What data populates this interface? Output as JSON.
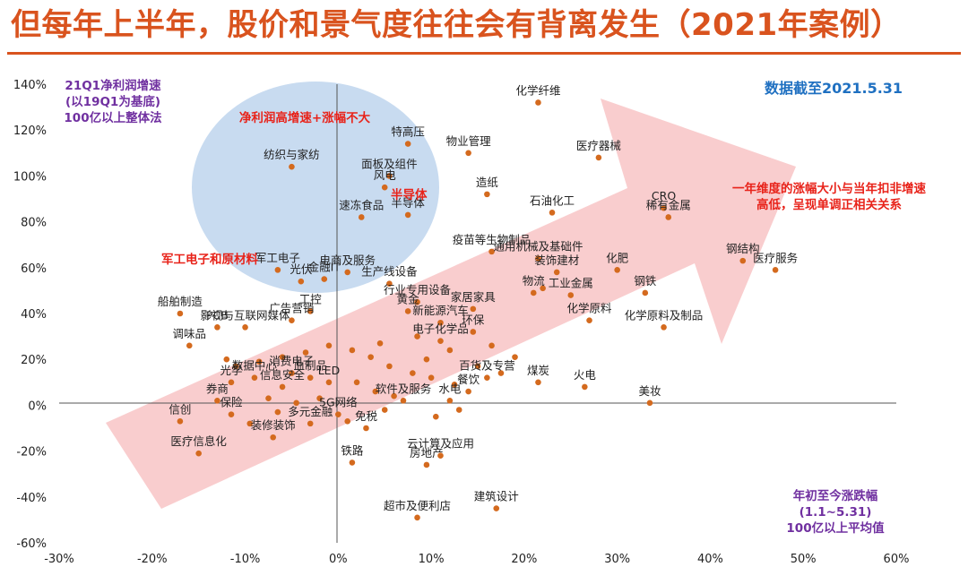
{
  "page_title": "但每年上半年，股价和景气度往往会有背离发生（2021年案例）",
  "colors": {
    "accent": "#d9531e",
    "point": "#d46a1e",
    "red_text": "#e8231a",
    "purple_text": "#7030a0",
    "blue_text": "#1f70c1",
    "ellipse": "#c2d7ee",
    "arrow": "#f8c4c6"
  },
  "chart_data": {
    "type": "scatter",
    "xlim": [
      -30,
      60
    ],
    "ylim": [
      -60,
      140
    ],
    "x_ticks": [
      "-30%",
      "-20%",
      "-10%",
      "0%",
      "10%",
      "20%",
      "30%",
      "40%",
      "50%",
      "60%"
    ],
    "y_ticks": [
      "140%",
      "120%",
      "100%",
      "80%",
      "60%",
      "40%",
      "20%",
      "0%",
      "-20%",
      "-40%",
      "-60%"
    ],
    "y_axis_title": "21Q1净利润增速\n(以19Q1为基底)\n100亿以上整体法",
    "x_axis_title": "年初至今涨跌幅\n(1.1~5.31)\n100亿以上平均值",
    "date_note": "数据截至2021.5.31",
    "annotations": [
      {
        "text": "净利润高增速+涨幅不大",
        "x": -6,
        "y": 123
      },
      {
        "text": "半导体",
        "x": 6,
        "y": 91
      },
      {
        "text": "军工电子和原材料",
        "x": -23,
        "y": 63
      },
      {
        "text": "一年维度的涨幅大小与当年扣非增速\n高低，呈现单调正相关关系",
        "x": 43,
        "y": 93
      }
    ],
    "points": [
      {
        "label": "化学纤维",
        "x": 21.5,
        "y": 132
      },
      {
        "label": "特高压",
        "x": 7.5,
        "y": 114
      },
      {
        "label": "物业管理",
        "x": 14,
        "y": 110
      },
      {
        "label": "医疗器械",
        "x": 28,
        "y": 108
      },
      {
        "label": "纺织与家纺",
        "x": -5,
        "y": 104
      },
      {
        "label": "面板及组件",
        "x": 5.5,
        "y": 100
      },
      {
        "label": "风电",
        "x": 5,
        "y": 95
      },
      {
        "label": "造纸",
        "x": 16,
        "y": 92
      },
      {
        "label": "CRO",
        "x": 35,
        "y": 86
      },
      {
        "label": "稀有金属",
        "x": 35.5,
        "y": 82
      },
      {
        "label": "石油化工",
        "x": 23,
        "y": 84
      },
      {
        "label": "速冻食品",
        "x": 2.5,
        "y": 82
      },
      {
        "label": "疫苗等生物制品",
        "x": 16.5,
        "y": 67
      },
      {
        "label": "钢结构",
        "x": 43.5,
        "y": 63
      },
      {
        "label": "医疗服务",
        "x": 47,
        "y": 59
      },
      {
        "label": "通用机械及基础件",
        "x": 21.5,
        "y": 64
      },
      {
        "label": "装饰建材",
        "x": 23.5,
        "y": 58
      },
      {
        "label": "化肥",
        "x": 30,
        "y": 59
      },
      {
        "label": "金融IT",
        "x": -1.5,
        "y": 55
      },
      {
        "label": "光伏",
        "x": -4,
        "y": 54
      },
      {
        "label": "生产线设备",
        "x": 5.5,
        "y": 53
      },
      {
        "label": "电商及服务",
        "x": 1,
        "y": 58
      },
      {
        "label": "军工电子",
        "x": -6.5,
        "y": 59
      },
      {
        "label": "物流",
        "x": 21,
        "y": 49
      },
      {
        "label": "钢铁",
        "x": 33,
        "y": 49
      },
      {
        "label": "工业金属",
        "x": 25,
        "y": 48
      },
      {
        "label": "家居家具",
        "x": 14.5,
        "y": 42
      },
      {
        "label": "行业专用设备",
        "x": 8.5,
        "y": 45
      },
      {
        "label": "黄金",
        "x": 7.5,
        "y": 41
      },
      {
        "label": "化学原料及制品",
        "x": 35,
        "y": 34
      },
      {
        "label": "化学原料",
        "x": 27,
        "y": 37
      },
      {
        "label": "新能源汽车",
        "x": 11,
        "y": 36
      },
      {
        "label": "环保",
        "x": 14.5,
        "y": 32
      },
      {
        "label": "电子化学品",
        "x": 11,
        "y": 28
      },
      {
        "label": "工控",
        "x": -3,
        "y": 41
      },
      {
        "label": "广告营销",
        "x": -5,
        "y": 37
      },
      {
        "label": "影视与互联网媒体",
        "x": -10,
        "y": 34
      },
      {
        "label": "PCB",
        "x": -13,
        "y": 34
      },
      {
        "label": "船舶制造",
        "x": -17,
        "y": 40
      },
      {
        "label": "调味品",
        "x": -16,
        "y": 26
      },
      {
        "label": "火电",
        "x": 26.5,
        "y": 8
      },
      {
        "label": "美妆",
        "x": 33.5,
        "y": 1
      },
      {
        "label": "煤炭",
        "x": 21.5,
        "y": 10
      },
      {
        "label": "百货及专营",
        "x": 16,
        "y": 12
      },
      {
        "label": "水电",
        "x": 12,
        "y": 2
      },
      {
        "label": "餐饮",
        "x": 14,
        "y": 6
      },
      {
        "label": "信创",
        "x": -17,
        "y": -7
      },
      {
        "label": "医疗信息化",
        "x": -15,
        "y": -21
      },
      {
        "label": "装修装饰",
        "x": -7,
        "y": -14
      },
      {
        "label": "多元金融",
        "x": -3,
        "y": -8
      },
      {
        "label": "5G网络",
        "x": 0,
        "y": -4
      },
      {
        "label": "免税",
        "x": 3,
        "y": -10
      },
      {
        "label": "铁路",
        "x": 1.5,
        "y": -25
      },
      {
        "label": "云计算及应用",
        "x": 11,
        "y": -22
      },
      {
        "label": "房地产",
        "x": 9.5,
        "y": -26
      },
      {
        "label": "建筑设计",
        "x": 17,
        "y": -45
      },
      {
        "label": "超市及便利店",
        "x": 8.5,
        "y": -49
      },
      {
        "label": "券商",
        "x": -13,
        "y": 2
      },
      {
        "label": "保险",
        "x": -11.5,
        "y": -4
      },
      {
        "label": "软件及服务",
        "x": 7,
        "y": 2
      },
      {
        "label": "LED",
        "x": -1,
        "y": 10
      },
      {
        "label": "信息安全",
        "x": -6,
        "y": 8
      },
      {
        "label": "数据中心",
        "x": -9,
        "y": 12
      },
      {
        "label": "光学",
        "x": -11.5,
        "y": 10
      },
      {
        "label": "血制品",
        "x": -3,
        "y": 12
      },
      {
        "label": "消费电子",
        "x": -5,
        "y": 14
      },
      {
        "label": "半导体",
        "x": 7.5,
        "y": 83
      },
      {
        "label": "",
        "x": -11,
        "y": 17
      },
      {
        "label": "",
        "x": -8.5,
        "y": 19
      },
      {
        "label": "",
        "x": -6,
        "y": 21
      },
      {
        "label": "",
        "x": -3.5,
        "y": 23
      },
      {
        "label": "",
        "x": -1,
        "y": 26
      },
      {
        "label": "",
        "x": 1.5,
        "y": 24
      },
      {
        "label": "",
        "x": 3.5,
        "y": 21
      },
      {
        "label": "",
        "x": 5.5,
        "y": 17
      },
      {
        "label": "",
        "x": 8,
        "y": 14
      },
      {
        "label": "",
        "x": 10,
        "y": 12
      },
      {
        "label": "",
        "x": 12.5,
        "y": 9
      },
      {
        "label": "",
        "x": 2,
        "y": 10
      },
      {
        "label": "",
        "x": 4,
        "y": 6
      },
      {
        "label": "",
        "x": 6,
        "y": 4
      },
      {
        "label": "",
        "x": -2,
        "y": 3
      },
      {
        "label": "",
        "x": -4.5,
        "y": 1
      },
      {
        "label": "",
        "x": -7.5,
        "y": 3
      },
      {
        "label": "",
        "x": 9.5,
        "y": 20
      },
      {
        "label": "",
        "x": 12,
        "y": 24
      },
      {
        "label": "",
        "x": 15,
        "y": 17
      },
      {
        "label": "",
        "x": 17.5,
        "y": 14
      },
      {
        "label": "",
        "x": 19,
        "y": 21
      },
      {
        "label": "",
        "x": 13,
        "y": -2
      },
      {
        "label": "",
        "x": 10.5,
        "y": -5
      },
      {
        "label": "",
        "x": 5,
        "y": -2
      },
      {
        "label": "",
        "x": 1,
        "y": -7
      },
      {
        "label": "",
        "x": -6.5,
        "y": -3
      },
      {
        "label": "",
        "x": -9.5,
        "y": -8
      },
      {
        "label": "",
        "x": -12,
        "y": 20
      },
      {
        "label": "",
        "x": 8.5,
        "y": 30
      },
      {
        "label": "",
        "x": 4.5,
        "y": 27
      },
      {
        "label": "",
        "x": 16.5,
        "y": 26
      },
      {
        "label": "",
        "x": 22,
        "y": 51
      }
    ]
  }
}
